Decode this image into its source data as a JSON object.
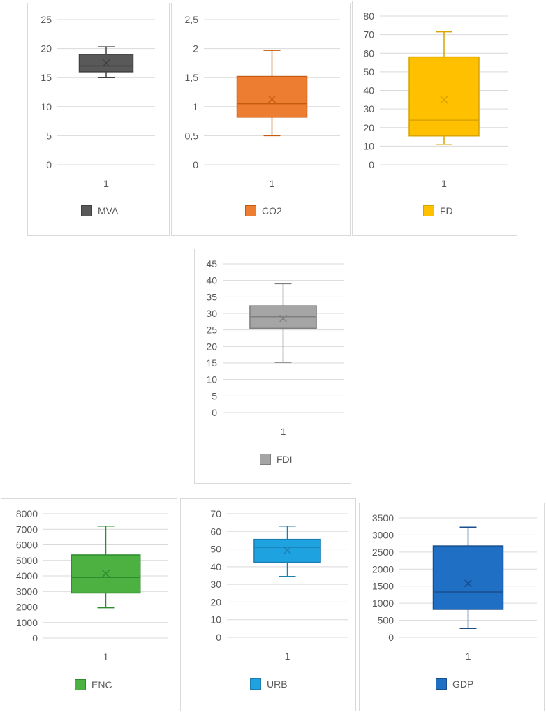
{
  "chart_data": [
    {
      "type": "boxplot",
      "categories": [
        "1"
      ],
      "series": [
        {
          "name": "MVA",
          "min": 15,
          "q1": 16,
          "median": 17,
          "q3": 19,
          "max": 20.3,
          "mean": 17.5,
          "color": "#595959",
          "stroke": "#404040"
        }
      ],
      "ylim": [
        0,
        25
      ],
      "yticks": [
        "0",
        "5",
        "10",
        "15",
        "20",
        "25"
      ],
      "grid": true,
      "legend": "bottom"
    },
    {
      "type": "boxplot",
      "categories": [
        "1"
      ],
      "series": [
        {
          "name": "CO2",
          "min": 0.5,
          "q1": 0.82,
          "median": 1.05,
          "q3": 1.52,
          "max": 1.97,
          "mean": 1.13,
          "color": "#ED7D31",
          "stroke": "#C55A11"
        }
      ],
      "ylim": [
        0,
        2.5
      ],
      "yticks": [
        "0",
        "0,5",
        "1",
        "1,5",
        "2",
        "2,5"
      ],
      "grid": true,
      "legend": "bottom"
    },
    {
      "type": "boxplot",
      "categories": [
        "1"
      ],
      "series": [
        {
          "name": "FD",
          "min": 11,
          "q1": 15.5,
          "median": 24,
          "q3": 58,
          "max": 71.5,
          "mean": 35,
          "color": "#FFC000",
          "stroke": "#D9A300"
        }
      ],
      "ylim": [
        0,
        80
      ],
      "yticks": [
        "0",
        "10",
        "20",
        "30",
        "40",
        "50",
        "60",
        "70",
        "80"
      ],
      "grid": true,
      "legend": "bottom"
    },
    {
      "type": "boxplot",
      "categories": [
        "1"
      ],
      "series": [
        {
          "name": "FDI",
          "min": 15.2,
          "q1": 25.5,
          "median": 29,
          "q3": 32.3,
          "max": 39,
          "mean": 28.5,
          "color": "#A5A5A5",
          "stroke": "#7F7F7F"
        }
      ],
      "ylim": [
        0,
        45
      ],
      "yticks": [
        "0",
        "5",
        "10",
        "15",
        "20",
        "25",
        "30",
        "35",
        "40",
        "45"
      ],
      "grid": true,
      "legend": "bottom"
    },
    {
      "type": "boxplot",
      "categories": [
        "1"
      ],
      "series": [
        {
          "name": "ENC",
          "min": 1950,
          "q1": 2900,
          "median": 3900,
          "q3": 5350,
          "max": 7200,
          "mean": 4150,
          "color": "#4CB140",
          "stroke": "#2E8B2E"
        }
      ],
      "ylim": [
        0,
        8000
      ],
      "yticks": [
        "0",
        "1000",
        "2000",
        "3000",
        "4000",
        "5000",
        "6000",
        "7000",
        "8000"
      ],
      "grid": true,
      "legend": "bottom"
    },
    {
      "type": "boxplot",
      "categories": [
        "1"
      ],
      "series": [
        {
          "name": "URB",
          "min": 34.5,
          "q1": 42.5,
          "median": 51,
          "q3": 55.5,
          "max": 63,
          "mean": 49.2,
          "color": "#1FA3E0",
          "stroke": "#1A7FB0"
        }
      ],
      "ylim": [
        0,
        70
      ],
      "yticks": [
        "0",
        "10",
        "20",
        "30",
        "40",
        "50",
        "60",
        "70"
      ],
      "grid": true,
      "legend": "bottom"
    },
    {
      "type": "boxplot",
      "categories": [
        "1"
      ],
      "series": [
        {
          "name": "GDP",
          "min": 260,
          "q1": 820,
          "median": 1330,
          "q3": 2680,
          "max": 3230,
          "mean": 1580,
          "color": "#1F6FC5",
          "stroke": "#1A4F8F"
        }
      ],
      "ylim": [
        0,
        3500
      ],
      "yticks": [
        "0",
        "500",
        "1000",
        "1500",
        "2000",
        "2500",
        "3000",
        "3500"
      ],
      "grid": true,
      "legend": "bottom"
    }
  ]
}
